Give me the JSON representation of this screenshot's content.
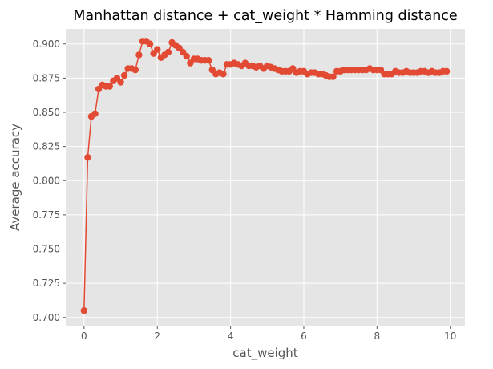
{
  "chart_data": {
    "type": "line",
    "title": "Manhattan distance + cat_weight * Hamming distance",
    "xlabel": "cat_weight",
    "ylabel": "Average accuracy",
    "xlim": [
      -0.5,
      10.4
    ],
    "ylim": [
      0.694,
      0.911
    ],
    "xticks": [
      0,
      2,
      4,
      6,
      8,
      10
    ],
    "xtick_labels": [
      "0",
      "2",
      "4",
      "6",
      "8",
      "10"
    ],
    "yticks": [
      0.7,
      0.725,
      0.75,
      0.775,
      0.8,
      0.825,
      0.85,
      0.875,
      0.9
    ],
    "ytick_labels": [
      "0.700",
      "0.725",
      "0.750",
      "0.775",
      "0.800",
      "0.825",
      "0.850",
      "0.875",
      "0.900"
    ],
    "grid": true,
    "marker": "circle",
    "colors": {
      "series": "#e24a33",
      "plot_bg": "#e5e5e5",
      "grid": "#ffffff",
      "tick_text": "#555555"
    },
    "series": [
      {
        "x": [
          0.0,
          0.1,
          0.2,
          0.3,
          0.4,
          0.5,
          0.6,
          0.7,
          0.8,
          0.9,
          1.0,
          1.1,
          1.2,
          1.3,
          1.4,
          1.5,
          1.6,
          1.7,
          1.8,
          1.9,
          2.0,
          2.1,
          2.2,
          2.3,
          2.4,
          2.5,
          2.6,
          2.7,
          2.8,
          2.9,
          3.0,
          3.1,
          3.2,
          3.3,
          3.4,
          3.5,
          3.6,
          3.7,
          3.8,
          3.9,
          4.0,
          4.1,
          4.2,
          4.3,
          4.4,
          4.5,
          4.6,
          4.7,
          4.8,
          4.9,
          5.0,
          5.1,
          5.2,
          5.3,
          5.4,
          5.5,
          5.6,
          5.7,
          5.8,
          5.9,
          6.0,
          6.1,
          6.2,
          6.3,
          6.4,
          6.5,
          6.6,
          6.7,
          6.8,
          6.9,
          7.0,
          7.1,
          7.2,
          7.3,
          7.4,
          7.5,
          7.6,
          7.7,
          7.8,
          7.9,
          8.0,
          8.1,
          8.2,
          8.3,
          8.4,
          8.5,
          8.6,
          8.7,
          8.8,
          8.9,
          9.0,
          9.1,
          9.2,
          9.3,
          9.4,
          9.5,
          9.6,
          9.7,
          9.8,
          9.9
        ],
        "y": [
          0.705,
          0.817,
          0.847,
          0.849,
          0.867,
          0.87,
          0.869,
          0.869,
          0.873,
          0.875,
          0.872,
          0.877,
          0.882,
          0.882,
          0.881,
          0.892,
          0.902,
          0.902,
          0.9,
          0.893,
          0.896,
          0.89,
          0.892,
          0.894,
          0.901,
          0.899,
          0.897,
          0.894,
          0.891,
          0.886,
          0.889,
          0.889,
          0.888,
          0.888,
          0.888,
          0.881,
          0.878,
          0.879,
          0.878,
          0.885,
          0.885,
          0.886,
          0.885,
          0.884,
          0.886,
          0.884,
          0.884,
          0.883,
          0.884,
          0.882,
          0.884,
          0.883,
          0.882,
          0.881,
          0.88,
          0.88,
          0.88,
          0.882,
          0.879,
          0.88,
          0.88,
          0.878,
          0.879,
          0.879,
          0.878,
          0.878,
          0.877,
          0.876,
          0.876,
          0.88,
          0.88,
          0.881,
          0.881,
          0.881,
          0.881,
          0.881,
          0.881,
          0.881,
          0.882,
          0.881,
          0.881,
          0.881,
          0.878,
          0.878,
          0.878,
          0.88,
          0.879,
          0.879,
          0.88,
          0.879,
          0.879,
          0.879,
          0.88,
          0.88,
          0.879,
          0.88,
          0.879,
          0.879,
          0.88,
          0.88
        ]
      }
    ]
  }
}
